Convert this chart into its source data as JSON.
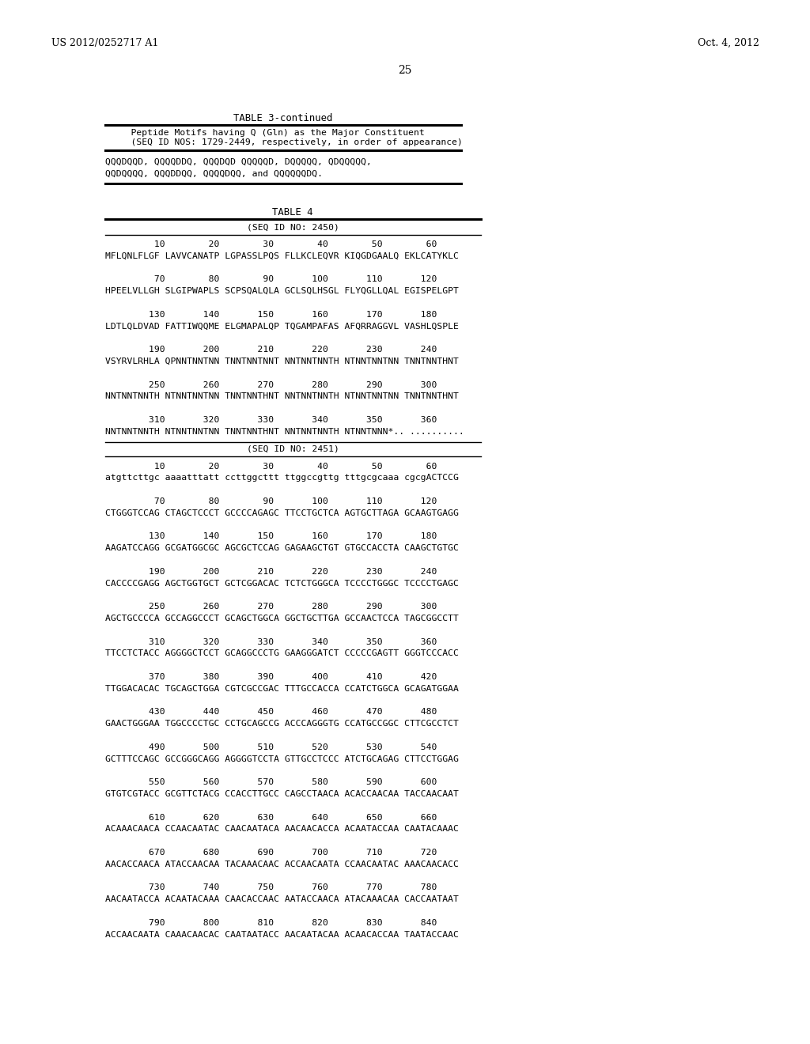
{
  "bg_color": "#ffffff",
  "header_left": "US 2012/0252717 A1",
  "header_right": "Oct. 4, 2012",
  "page_number": "25",
  "table3_title": "TABLE 3-continued",
  "table3_header_line1": "    Peptide Motifs having Q (Gln) as the Major Constituent",
  "table3_header_line2": "    (SEQ ID NOS: 1729-2449, respectively, in order of appearance)",
  "table3_body_line1": "QQQDQQD, QQQQDDQ, QQQDQD QQQQQD, DQQQQQ, QDQQQQQ,",
  "table3_body_line2": "QQDQQQQ, QQQDDQQ, QQQQDQQ, and QQQQQQDQ.",
  "table4_title": "TABLE 4",
  "seq2450_header": "(SEQ ID NO: 2450)",
  "seq2450_lines": [
    "         10        20        30        40        50        60",
    "MFLQNLFLGF LAVVCANATP LGPASSLPQS FLLKCLEQVR KIQGDGAALQ EKLCATYKLC",
    "",
    "         70        80        90       100       110       120",
    "HPEELVLLGH SLGIPWAPLS SCPSQALQLA GCLSQLHSGL FLYQGLLQAL EGISPELGPT",
    "",
    "        130       140       150       160       170       180",
    "LDTLQLDVAD FATTIWQQME ELGMAPALQP TQGAMPAFAS AFQRRAGGVL VASHLQSPLE",
    "",
    "        190       200       210       220       230       240",
    "VSYRVLRHLA QPNNTNNTNN TNNTNNTNNТ NNTNNTNNTН NTNNTNNTNN TNNTNNTНNT",
    "",
    "        250       260       270       280       290       300",
    "NNTNNTNNTН NTNNTNNTNN TNNTNNTНNT NNTNNTNNTН NTNNTNNTNN TNNTNNTНNT",
    "",
    "        310       320       330       340       350       360",
    "NNTNNTNNTН NTNNTNNTNN TNNTNNTНNT NNTNNTNNTН NTNNTNNN*.. .........."
  ],
  "seq2451_header": "(SEQ ID NO: 2451)",
  "seq2451_lines": [
    "         10        20        30        40        50        60",
    "atgttcttgc aaaatttatt ccttggcttt ttggccgttg tttgcgcaaa cgcgACTCCG",
    "",
    "         70        80        90       100       110       120",
    "CTGGGTCCAG CTAGCTCCCT GCCCCAGAGC TTCCTGCTCA AGTGCTTAGA GCAAGTGAGG",
    "",
    "        130       140       150       160       170       180",
    "AAGATCCAGG GCGATGGCGC AGCGCTCCAG GAGAAGCTGT GTGCCACCTA CAAGCTGTGC",
    "",
    "        190       200       210       220       230       240",
    "CACCCCGAGG AGCTGGTGCT GCTCGGACAC TCTCTGGGCA TCCCCTGGGC TCCCCTGAGC",
    "",
    "        250       260       270       280       290       300",
    "AGCTGCCCCA GCCAGGCCCT GCAGCTGGCA GGCTGCTTGA GCCAACTCCA TAGCGGCCTT",
    "",
    "        310       320       330       340       350       360",
    "TTCCTCTACC AGGGGCTCCT GCAGGCCCTG GAAGGGATCT CCCCCGAGTT GGGTCCCACC",
    "",
    "        370       380       390       400       410       420",
    "TTGGACACAC TGCAGCTGGA CGTCGCCGAC TTTGCCACCA CCATCTGGCA GCAGATGGAA",
    "",
    "        430       440       450       460       470       480",
    "GAACTGGGAA TGGCCCCTGC CCTGCAGCCG ACCCAGGGTG CCATGCCGGC CTTCGCCTCT",
    "",
    "        490       500       510       520       530       540",
    "GCTTTCCAGC GCCGGGCAGG AGGGGTCCTA GTTGCCTCCC ATCTGCAGAG CTTCCTGGAG",
    "",
    "        550       560       570       580       590       600",
    "GTGTCGTACC GCGTTCTACG CCACCTTGCC CAGCCTAACA ACACCAACAA TACCAACAAT",
    "",
    "        610       620       630       640       650       660",
    "ACAAACAACA CCAACAATAC CAACAATACA AACAACACCA ACAATACCAA CAATACAAAC",
    "",
    "        670       680       690       700       710       720",
    "AACACCAACA ATACCAACAA TACAAACAAC ACCAACAATA CCAACAATAC AAACAACACC",
    "",
    "        730       740       750       760       770       780",
    "AACAATACCA ACAATACAAA CAACACCAAC AATACCAACA ATACAAACAA CACCAATAAT",
    "",
    "        790       800       810       820       830       840",
    "ACCAACAATA CAAACAACAC CAATAATACC AACAATACAA ACAACACCAA TAATACCAAC"
  ]
}
